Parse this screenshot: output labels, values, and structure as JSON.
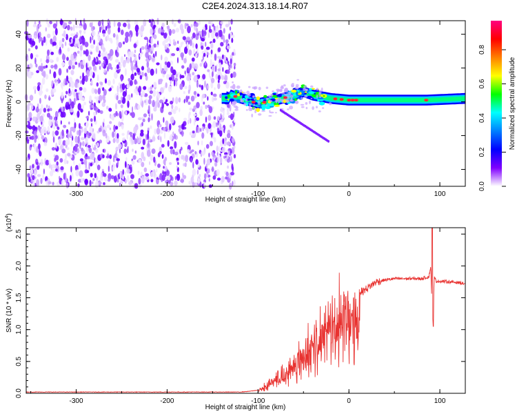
{
  "figure_title": "C2E4.2024.313.18.14.R07",
  "chart_data": [
    {
      "type": "heatmap",
      "title": "C2E4.2024.313.18.14.R07",
      "xlabel": "Height of straight line (km)",
      "ylabel": "Frequency (Hz)",
      "xlim": [
        -355,
        128
      ],
      "ylim": [
        -50,
        48
      ],
      "x_ticks": [
        -300,
        -200,
        -100,
        0,
        100
      ],
      "y_ticks": [
        -40,
        -20,
        0,
        20,
        40
      ],
      "colorbar": {
        "label": "Normalized spectral amplitude",
        "range": [
          0,
          0.97
        ],
        "ticks": [
          "0.0",
          "0.2",
          "0.4",
          "0.6",
          "0.8"
        ],
        "colormap": [
          "#ff0080",
          "#ff0000",
          "#ff8000",
          "#ffff00",
          "#00ff00",
          "#00ffff",
          "#0080ff",
          "#0000ff",
          "#8000ff",
          "#ffffff"
        ]
      },
      "regions": [
        {
          "x_range": [
            -355,
            -130
          ],
          "freq_range": [
            -50,
            48
          ],
          "amplitude": 0.1,
          "description": "noise"
        },
        {
          "x_range": [
            -130,
            128
          ],
          "center_freq": [
            [
              -130,
              4
            ],
            [
              -100,
              -1
            ],
            [
              -80,
              1
            ],
            [
              -60,
              4
            ],
            [
              -50,
              6
            ],
            [
              -40,
              4
            ],
            [
              -20,
              2
            ],
            [
              0,
              1
            ],
            [
              50,
              1
            ],
            [
              85,
              1
            ],
            [
              128,
              2
            ]
          ],
          "amplitude_peak": 0.97
        }
      ],
      "grid": false
    },
    {
      "type": "line",
      "xlabel": "Height of straight line (km)",
      "ylabel": "SNR (10 * v/v)",
      "y_multiplier": "(x10",
      "y_multiplier_exp": "4",
      "y_multiplier_close": ")",
      "xlim": [
        -355,
        128
      ],
      "ylim": [
        0,
        2.6
      ],
      "x_ticks": [
        -300,
        -200,
        -100,
        0,
        100
      ],
      "y_ticks": [
        "0.0",
        "0.5",
        "1.0",
        "1.5",
        "2.0",
        "2.5"
      ],
      "line_color": "#e8312f",
      "series": [
        {
          "x": [
            -355,
            -300,
            -250,
            -200,
            -150,
            -120,
            -110,
            -100,
            -95,
            -90,
            -85,
            -80,
            -75,
            -70,
            -65,
            -60,
            -55,
            -50,
            -45,
            -40,
            -35,
            -30,
            -25,
            -20,
            -15,
            -10,
            -5,
            0,
            5,
            10,
            15,
            20,
            25,
            30,
            40,
            50,
            60,
            70,
            80,
            88,
            90,
            92,
            94,
            96,
            100,
            110,
            120,
            128
          ],
          "y": [
            0.02,
            0.02,
            0.02,
            0.02,
            0.02,
            0.02,
            0.03,
            0.05,
            0.1,
            0.15,
            0.22,
            0.3,
            0.35,
            0.42,
            0.5,
            0.6,
            0.7,
            0.75,
            0.85,
            0.95,
            1.05,
            1.2,
            1.3,
            1.35,
            1.4,
            1.5,
            1.5,
            1.55,
            1.4,
            1.6,
            1.6,
            1.65,
            1.7,
            1.75,
            1.78,
            1.8,
            1.8,
            1.8,
            1.8,
            1.83,
            2.0,
            1.05,
            1.82,
            1.76,
            1.76,
            1.75,
            1.74,
            1.72
          ],
          "noise_spikes": {
            "x_range": [
              -100,
              10
            ],
            "max": 1.9
          }
        }
      ],
      "grid": false
    }
  ]
}
